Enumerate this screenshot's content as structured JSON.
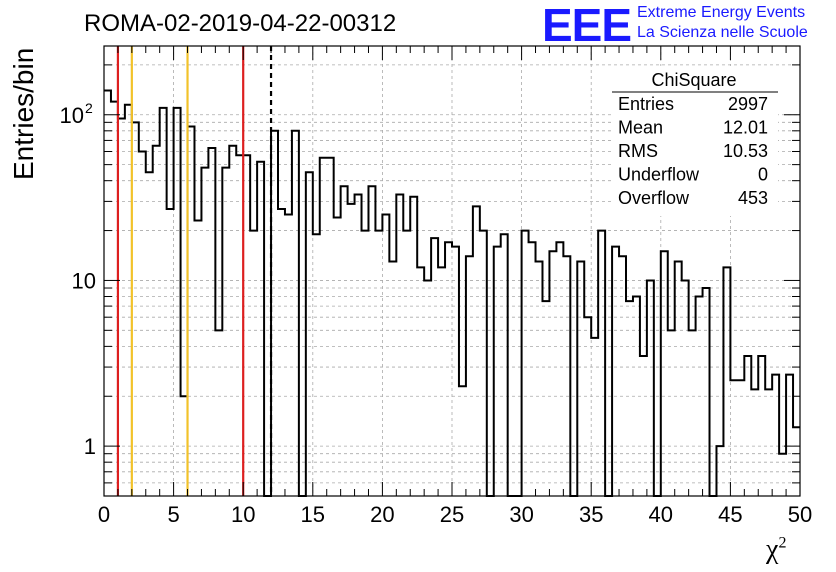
{
  "title": "ROMA-02-2019-04-22-00312",
  "logo": {
    "mark": "EEE",
    "line1": "Extreme Energy Events",
    "line2": "La Scienza nelle Scuole",
    "color": "#1a1aff"
  },
  "stats": {
    "header": "ChiSquare",
    "rows": [
      {
        "label": "Entries",
        "value": "2997"
      },
      {
        "label": "Mean",
        "value": "12.01"
      },
      {
        "label": "RMS",
        "value": "10.53"
      },
      {
        "label": "Underflow",
        "value": "0"
      },
      {
        "label": "Overflow",
        "value": "453"
      }
    ]
  },
  "chart_data": {
    "type": "bar",
    "histogram": true,
    "title": "ROMA-02-2019-04-22-00312",
    "xlabel": "χ",
    "xlabel_sup": "2",
    "ylabel": "Entries/bin",
    "xlim": [
      0,
      50
    ],
    "ylim": [
      0.5,
      260
    ],
    "yscale": "log",
    "grid": true,
    "bin_width": 0.5,
    "x_ticks": [
      "0",
      "5",
      "10",
      "15",
      "20",
      "25",
      "30",
      "35",
      "40",
      "45",
      "50"
    ],
    "y_ticks": [
      {
        "value": 1,
        "label": "1"
      },
      {
        "value": 10,
        "label": "10"
      },
      {
        "value": 100,
        "label": "10",
        "exp": "2"
      }
    ],
    "values": [
      140,
      120,
      95,
      115,
      90,
      60,
      45,
      65,
      110,
      27,
      110,
      2,
      85,
      23,
      48,
      63,
      5,
      48,
      65,
      57,
      57,
      20,
      52,
      0,
      80,
      27,
      25,
      80,
      0,
      45,
      19,
      55,
      55,
      24,
      37,
      29,
      33,
      20,
      37,
      20,
      25,
      13,
      33,
      20,
      32,
      12,
      10,
      18,
      12,
      17,
      16,
      2.3,
      14,
      28,
      20,
      0,
      16,
      19,
      0,
      0,
      20,
      17,
      13,
      7.5,
      15,
      17,
      14,
      0,
      13,
      6,
      4.5,
      20,
      0,
      16,
      14,
      7.5,
      8,
      3.5,
      10,
      0,
      15,
      5,
      13,
      10,
      5,
      8,
      9,
      0,
      1,
      12,
      2.5,
      2.5,
      3.5,
      2.2,
      3.5,
      2.2,
      2.7,
      0.9,
      2.7,
      1.3
    ],
    "vlines": [
      {
        "x": 1,
        "color": "#dd1f1f",
        "style": "solid"
      },
      {
        "x": 2,
        "color": "#f2c22a",
        "style": "solid"
      },
      {
        "x": 6,
        "color": "#f2c22a",
        "style": "solid"
      },
      {
        "x": 10,
        "color": "#dd1f1f",
        "style": "solid"
      },
      {
        "x": 12,
        "color": "#000000",
        "style": "dashed"
      }
    ]
  }
}
